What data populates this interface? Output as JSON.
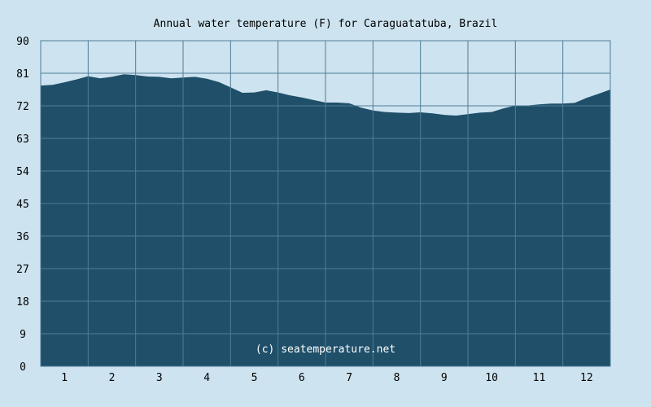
{
  "chart_data": {
    "type": "area",
    "title": "Annual water temperature (F) for Caraguatatuba, Brazil",
    "credit": "(c) seatemperature.net",
    "xlabel": "",
    "ylabel": "",
    "x_ticks": [
      "1",
      "2",
      "3",
      "4",
      "5",
      "6",
      "7",
      "8",
      "9",
      "10",
      "11",
      "12"
    ],
    "y_ticks": [
      "0",
      "9",
      "18",
      "27",
      "36",
      "45",
      "54",
      "63",
      "72",
      "81",
      "90"
    ],
    "ylim": [
      0,
      90
    ],
    "xlim": [
      0.5,
      12.5
    ],
    "grid": true,
    "x": [
      0.5,
      0.75,
      1.0,
      1.25,
      1.5,
      1.75,
      2.0,
      2.25,
      2.5,
      2.75,
      3.0,
      3.25,
      3.5,
      3.75,
      4.0,
      4.25,
      4.5,
      4.75,
      5.0,
      5.25,
      5.5,
      5.75,
      6.0,
      6.25,
      6.5,
      6.75,
      7.0,
      7.25,
      7.5,
      7.75,
      8.0,
      8.25,
      8.5,
      8.75,
      9.0,
      9.25,
      9.5,
      9.75,
      10.0,
      10.25,
      10.5,
      10.75,
      11.0,
      11.25,
      11.5,
      11.75,
      12.0,
      12.25,
      12.5
    ],
    "values": [
      77.6,
      77.8,
      78.5,
      79.3,
      80.2,
      79.6,
      80.0,
      80.7,
      80.5,
      80.1,
      80.0,
      79.6,
      79.8,
      80.0,
      79.5,
      78.6,
      77.1,
      75.6,
      75.7,
      76.3,
      75.7,
      74.9,
      74.3,
      73.6,
      72.9,
      72.9,
      72.7,
      71.5,
      70.7,
      70.3,
      70.1,
      70.0,
      70.2,
      69.9,
      69.5,
      69.3,
      69.7,
      70.1,
      70.3,
      71.3,
      72.1,
      72.1,
      72.4,
      72.6,
      72.6,
      72.8,
      74.2,
      75.3,
      76.5
    ],
    "colors": {
      "background": "#cde3ef",
      "area_fill": "#1f4f69",
      "grid": "#4e7d97",
      "frame": "#4e7d97"
    }
  }
}
